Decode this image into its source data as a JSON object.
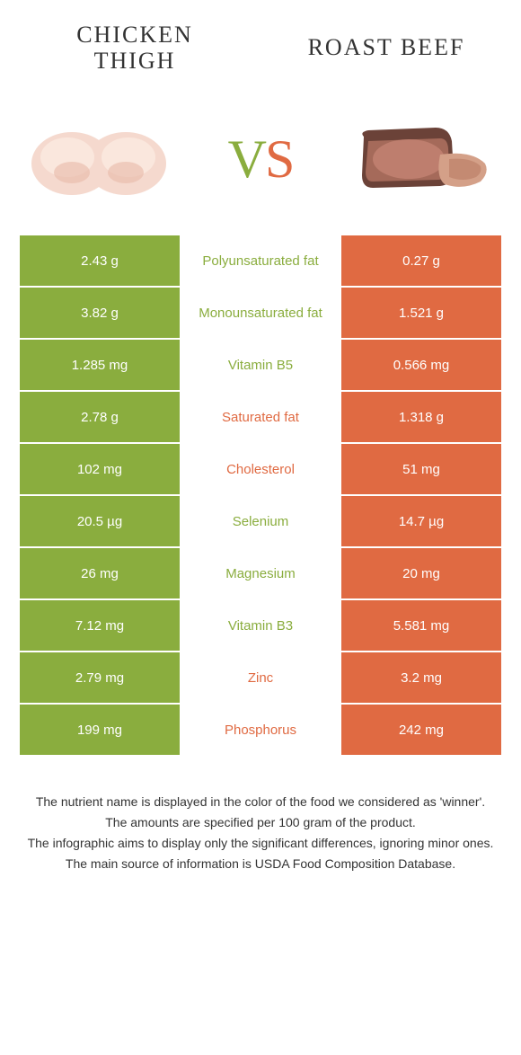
{
  "header": {
    "left_title_line1": "CHICKEN",
    "left_title_line2": "THIGH",
    "right_title": "ROAST BEEF",
    "vs_v": "V",
    "vs_s": "S"
  },
  "colors": {
    "green": "#8aad3e",
    "orange": "#e06a42",
    "white": "#ffffff"
  },
  "rows": [
    {
      "left": "2.43 g",
      "label": "Polyunsaturated fat",
      "right": "0.27 g",
      "winner": "green"
    },
    {
      "left": "3.82 g",
      "label": "Monounsaturated fat",
      "right": "1.521 g",
      "winner": "green"
    },
    {
      "left": "1.285 mg",
      "label": "Vitamin B5",
      "right": "0.566 mg",
      "winner": "green"
    },
    {
      "left": "2.78 g",
      "label": "Saturated fat",
      "right": "1.318 g",
      "winner": "orange"
    },
    {
      "left": "102 mg",
      "label": "Cholesterol",
      "right": "51 mg",
      "winner": "orange"
    },
    {
      "left": "20.5 µg",
      "label": "Selenium",
      "right": "14.7 µg",
      "winner": "green"
    },
    {
      "left": "26 mg",
      "label": "Magnesium",
      "right": "20 mg",
      "winner": "green"
    },
    {
      "left": "7.12 mg",
      "label": "Vitamin B3",
      "right": "5.581 mg",
      "winner": "green"
    },
    {
      "left": "2.79 mg",
      "label": "Zinc",
      "right": "3.2 mg",
      "winner": "orange"
    },
    {
      "left": "199 mg",
      "label": "Phosphorus",
      "right": "242 mg",
      "winner": "orange"
    }
  ],
  "footer": {
    "line1": "The nutrient name is displayed in the color of the food we considered as 'winner'.",
    "line2": "The amounts are specified per 100 gram of the product.",
    "line3": "The infographic aims to display only the significant differences, ignoring minor ones.",
    "line4": "The main source of information is USDA Food Composition Database."
  }
}
